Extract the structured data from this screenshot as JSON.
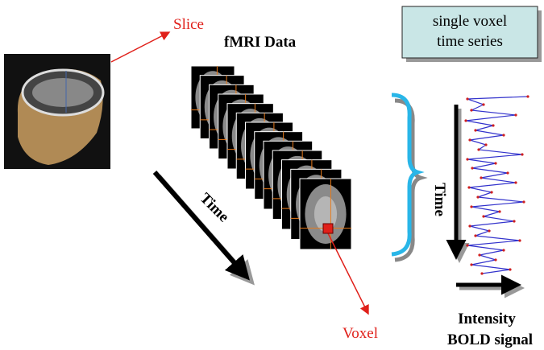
{
  "labels": {
    "slice": "Slice",
    "fmri_data": "fMRI  Data",
    "time_diagonal": "Time",
    "time_vertical": "Time",
    "voxel": "Voxel"
  },
  "box": {
    "lines": [
      "single voxel",
      "time series"
    ]
  },
  "signal": {
    "lines": [
      "Intensity",
      "BOLD signal"
    ]
  }
}
